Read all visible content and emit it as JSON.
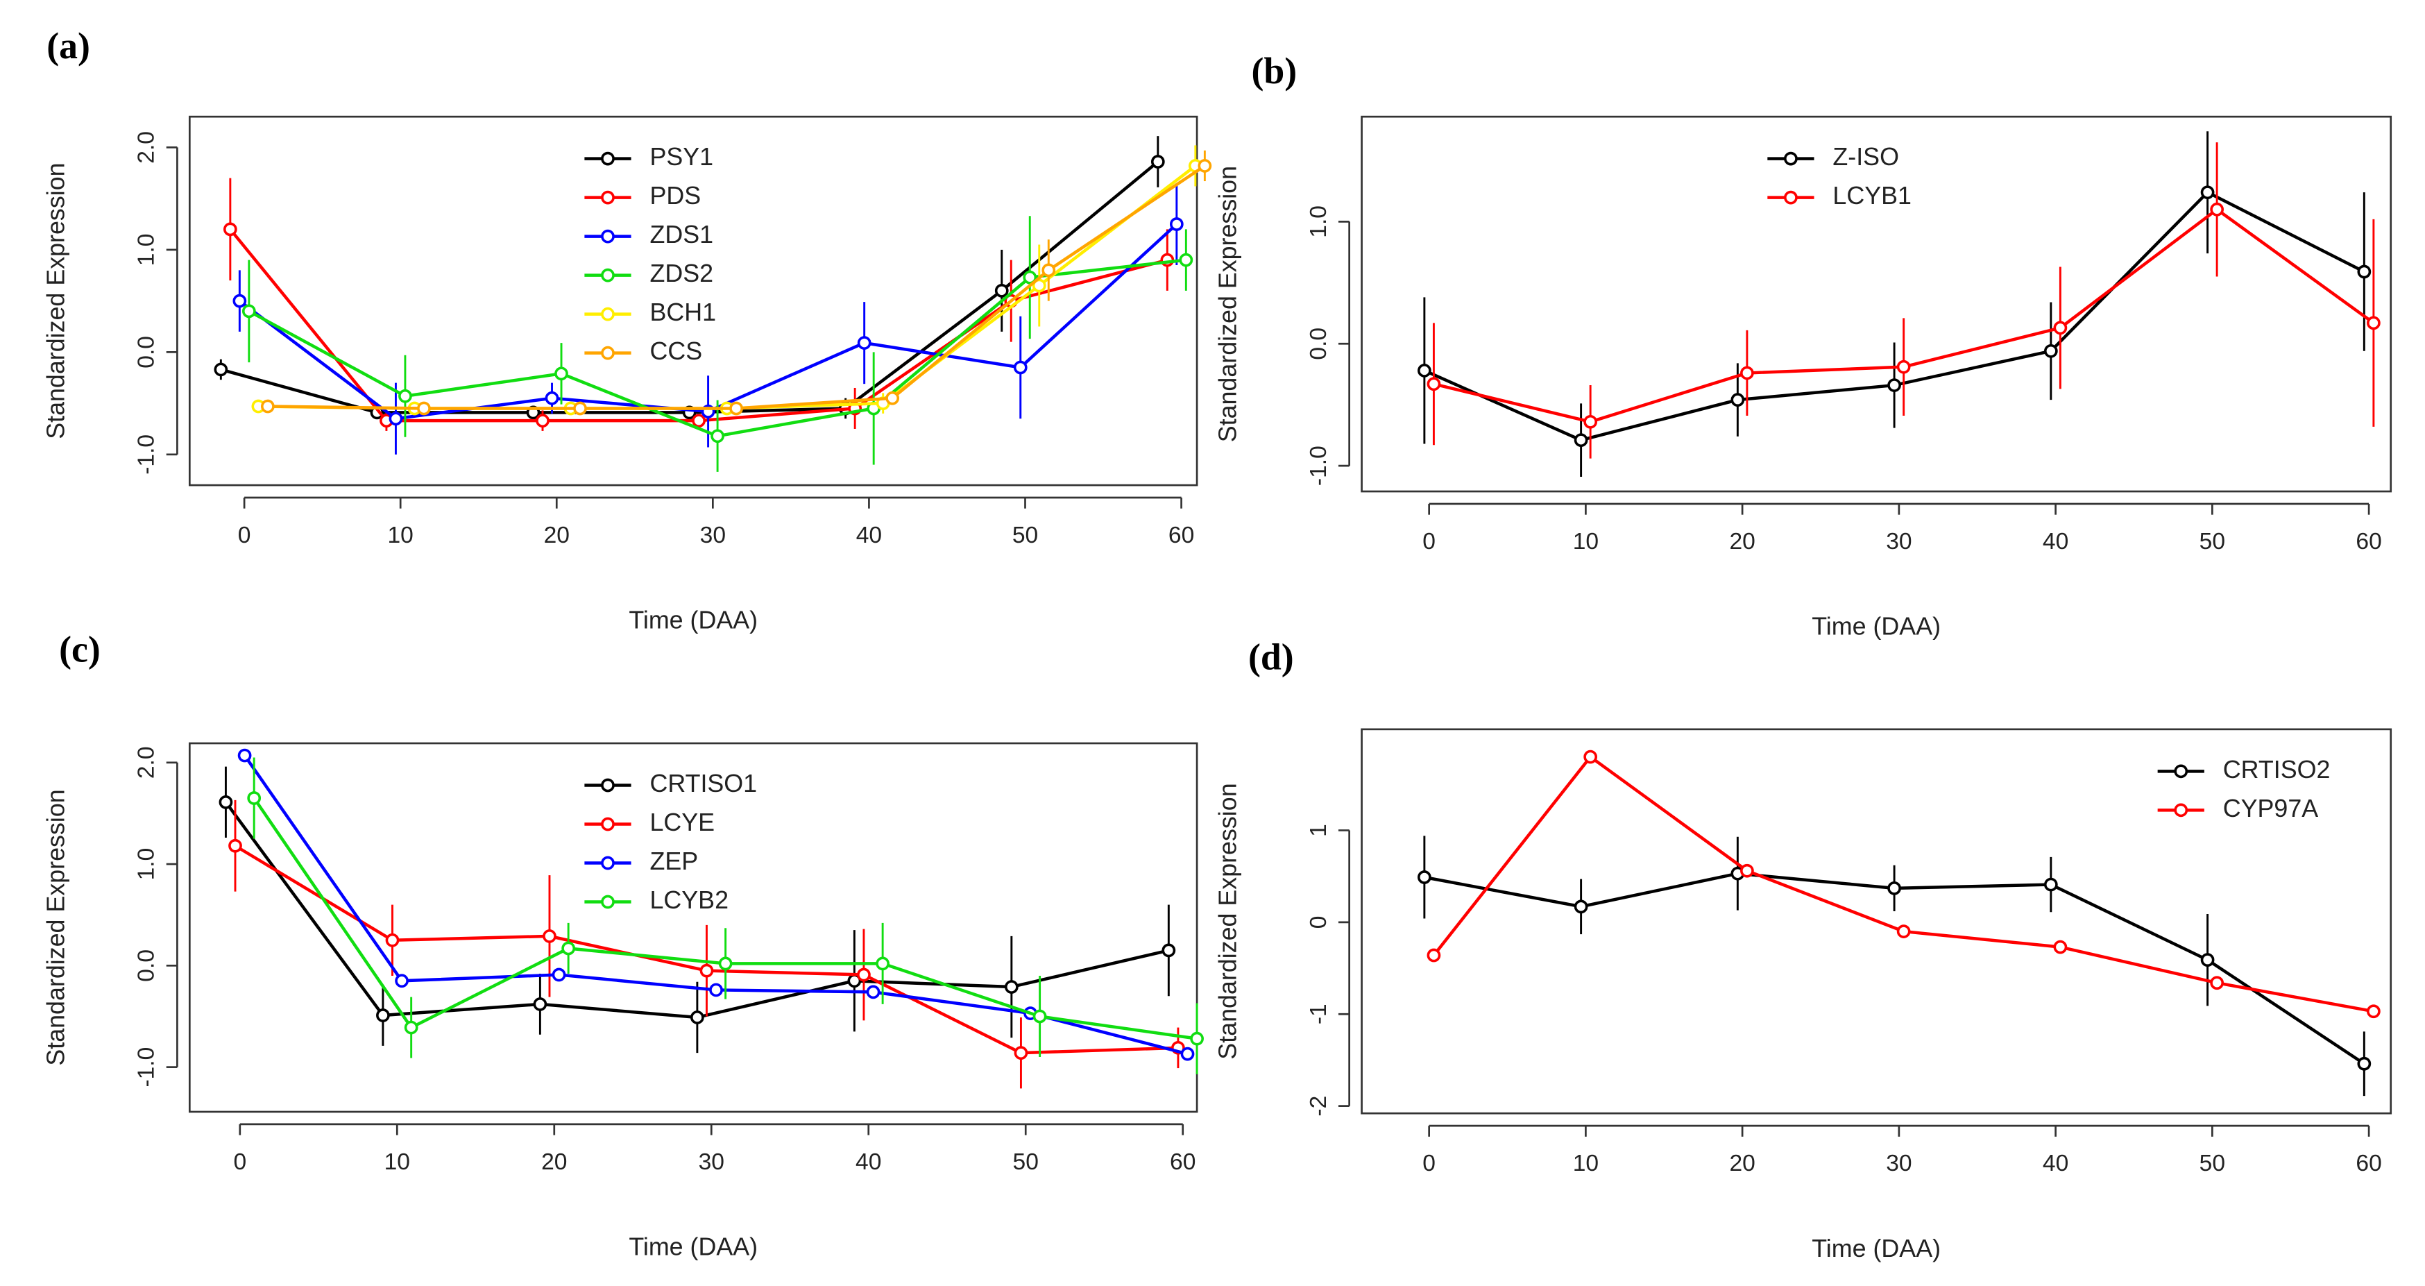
{
  "chart_data": [
    {
      "type": "line",
      "panel_label": "(a)",
      "xlabel": "Time (DAA)",
      "ylabel": "Standardized Expression",
      "legend": "top",
      "x": [
        0,
        10,
        20,
        30,
        40,
        50,
        60
      ],
      "xlim": [
        -3.5,
        61
      ],
      "ylim": [
        -1.3,
        2.3
      ],
      "xticks": [
        0,
        10,
        20,
        30,
        40,
        50,
        60
      ],
      "yticks": [
        {
          "value": -1,
          "label": "-1.0"
        },
        {
          "value": 0,
          "label": "0.0"
        },
        {
          "value": 1,
          "label": "1.0"
        },
        {
          "value": 2,
          "label": "2.0"
        }
      ],
      "series": [
        {
          "name": "PSY1",
          "color": "#000000",
          "values": [
            -0.17,
            -0.59,
            -0.59,
            -0.59,
            -0.55,
            0.6,
            1.86
          ],
          "errors": [
            0.1,
            0.05,
            0.05,
            0.05,
            0.1,
            0.4,
            0.25
          ]
        },
        {
          "name": "PDS",
          "color": "#ff0000",
          "values": [
            1.2,
            -0.67,
            -0.67,
            -0.67,
            -0.55,
            0.5,
            0.9
          ],
          "errors": [
            0.5,
            0.1,
            0.1,
            0.05,
            0.2,
            0.4,
            0.3
          ]
        },
        {
          "name": "ZDS1",
          "color": "#0000ff",
          "values": [
            0.5,
            -0.65,
            -0.45,
            -0.58,
            0.09,
            -0.15,
            1.25
          ],
          "errors": [
            0.3,
            0.35,
            0.15,
            0.35,
            0.4,
            0.5,
            0.4
          ]
        },
        {
          "name": "ZDS2",
          "color": "#11dd11",
          "values": [
            0.4,
            -0.43,
            -0.21,
            -0.82,
            -0.55,
            0.73,
            0.9
          ],
          "errors": [
            0.5,
            0.4,
            0.3,
            0.35,
            0.55,
            0.6,
            0.3
          ]
        },
        {
          "name": "BCH1",
          "color": "#ffee00",
          "values": [
            -0.53,
            -0.55,
            -0.55,
            -0.55,
            -0.5,
            0.65,
            1.82
          ],
          "errors": [
            0.03,
            0.03,
            0.03,
            0.03,
            0.1,
            0.4,
            0.2
          ]
        },
        {
          "name": "CCS",
          "color": "#ffa500",
          "values": [
            -0.53,
            -0.55,
            -0.55,
            -0.55,
            -0.45,
            0.8,
            1.82
          ],
          "errors": [
            0.03,
            0.03,
            0.03,
            0.03,
            0.05,
            0.3,
            0.15
          ]
        }
      ]
    },
    {
      "type": "line",
      "panel_label": "(b)",
      "xlabel": "Time (DAA)",
      "ylabel": "Standardized Expression",
      "legend": "top",
      "x": [
        0,
        10,
        20,
        30,
        40,
        50,
        60
      ],
      "xlim": [
        -4.3,
        61.4
      ],
      "ylim": [
        -1.21,
        1.86
      ],
      "xticks": [
        0,
        10,
        20,
        30,
        40,
        50,
        60
      ],
      "yticks": [
        {
          "value": -1,
          "label": "-1.0"
        },
        {
          "value": 0,
          "label": "0.0"
        },
        {
          "value": 1,
          "label": "1.0"
        }
      ],
      "series": [
        {
          "name": "Z-ISO",
          "color": "#000000",
          "values": [
            -0.22,
            -0.79,
            -0.46,
            -0.34,
            -0.06,
            1.24,
            0.59
          ],
          "errors": [
            0.6,
            0.3,
            0.3,
            0.35,
            0.4,
            0.5,
            0.65
          ]
        },
        {
          "name": "LCYB1",
          "color": "#ff0000",
          "values": [
            -0.33,
            -0.64,
            -0.24,
            -0.19,
            0.13,
            1.1,
            0.17
          ],
          "errors": [
            0.5,
            0.3,
            0.35,
            0.4,
            0.5,
            0.55,
            0.85
          ]
        }
      ]
    },
    {
      "type": "line",
      "panel_label": "(c)",
      "xlabel": "Time (DAA)",
      "ylabel": "Standardized Expression",
      "legend": "top",
      "x": [
        0,
        10,
        20,
        30,
        40,
        50,
        60
      ],
      "xlim": [
        -3.2,
        60.9
      ],
      "ylim": [
        -1.44,
        2.19
      ],
      "xticks": [
        0,
        10,
        20,
        30,
        40,
        50,
        60
      ],
      "yticks": [
        {
          "value": -1,
          "label": "-1.0"
        },
        {
          "value": 0,
          "label": "0.0"
        },
        {
          "value": 1,
          "label": "1.0"
        },
        {
          "value": 2,
          "label": "2.0"
        }
      ],
      "series": [
        {
          "name": "CRTISO1",
          "color": "#000000",
          "values": [
            1.61,
            -0.49,
            -0.38,
            -0.51,
            -0.15,
            -0.21,
            0.15
          ],
          "errors": [
            0.35,
            0.3,
            0.3,
            0.35,
            0.5,
            0.5,
            0.45
          ]
        },
        {
          "name": "LCYE",
          "color": "#ff0000",
          "values": [
            1.18,
            0.25,
            0.29,
            -0.05,
            -0.09,
            -0.86,
            -0.81
          ],
          "errors": [
            0.45,
            0.35,
            0.6,
            0.45,
            0.45,
            0.35,
            0.2
          ]
        },
        {
          "name": "ZEP",
          "color": "#0000ff",
          "values": [
            2.07,
            -0.15,
            -0.09,
            -0.24,
            -0.26,
            -0.47,
            -0.87
          ],
          "errors": [
            0.05,
            0.05,
            0.05,
            0.05,
            0.05,
            0.05,
            0.05
          ]
        },
        {
          "name": "LCYB2",
          "color": "#11dd11",
          "values": [
            1.65,
            -0.61,
            0.17,
            0.02,
            0.02,
            -0.5,
            -0.72
          ],
          "errors": [
            0.4,
            0.3,
            0.25,
            0.35,
            0.4,
            0.4,
            0.35
          ]
        }
      ]
    },
    {
      "type": "line",
      "panel_label": "(d)",
      "xlabel": "Time (DAA)",
      "ylabel": "Standardized Expression",
      "legend": "topright",
      "x": [
        0,
        10,
        20,
        30,
        40,
        50,
        60
      ],
      "xlim": [
        -4.3,
        61.4
      ],
      "ylim": [
        -2.08,
        2.1
      ],
      "xticks": [
        0,
        10,
        20,
        30,
        40,
        50,
        60
      ],
      "yticks": [
        -2,
        -1,
        0,
        1
      ],
      "series": [
        {
          "name": "CRTISO2",
          "color": "#000000",
          "values": [
            0.49,
            0.17,
            0.53,
            0.37,
            0.41,
            -0.41,
            -1.54
          ],
          "errors": [
            0.45,
            0.3,
            0.4,
            0.25,
            0.3,
            0.5,
            0.35
          ]
        },
        {
          "name": "CYP97A",
          "color": "#ff0000",
          "values": [
            -0.36,
            1.8,
            0.56,
            -0.1,
            -0.27,
            -0.66,
            -0.97
          ],
          "errors": [
            0.02,
            0.02,
            0.02,
            0.02,
            0.02,
            0.02,
            0.02
          ]
        }
      ]
    }
  ]
}
